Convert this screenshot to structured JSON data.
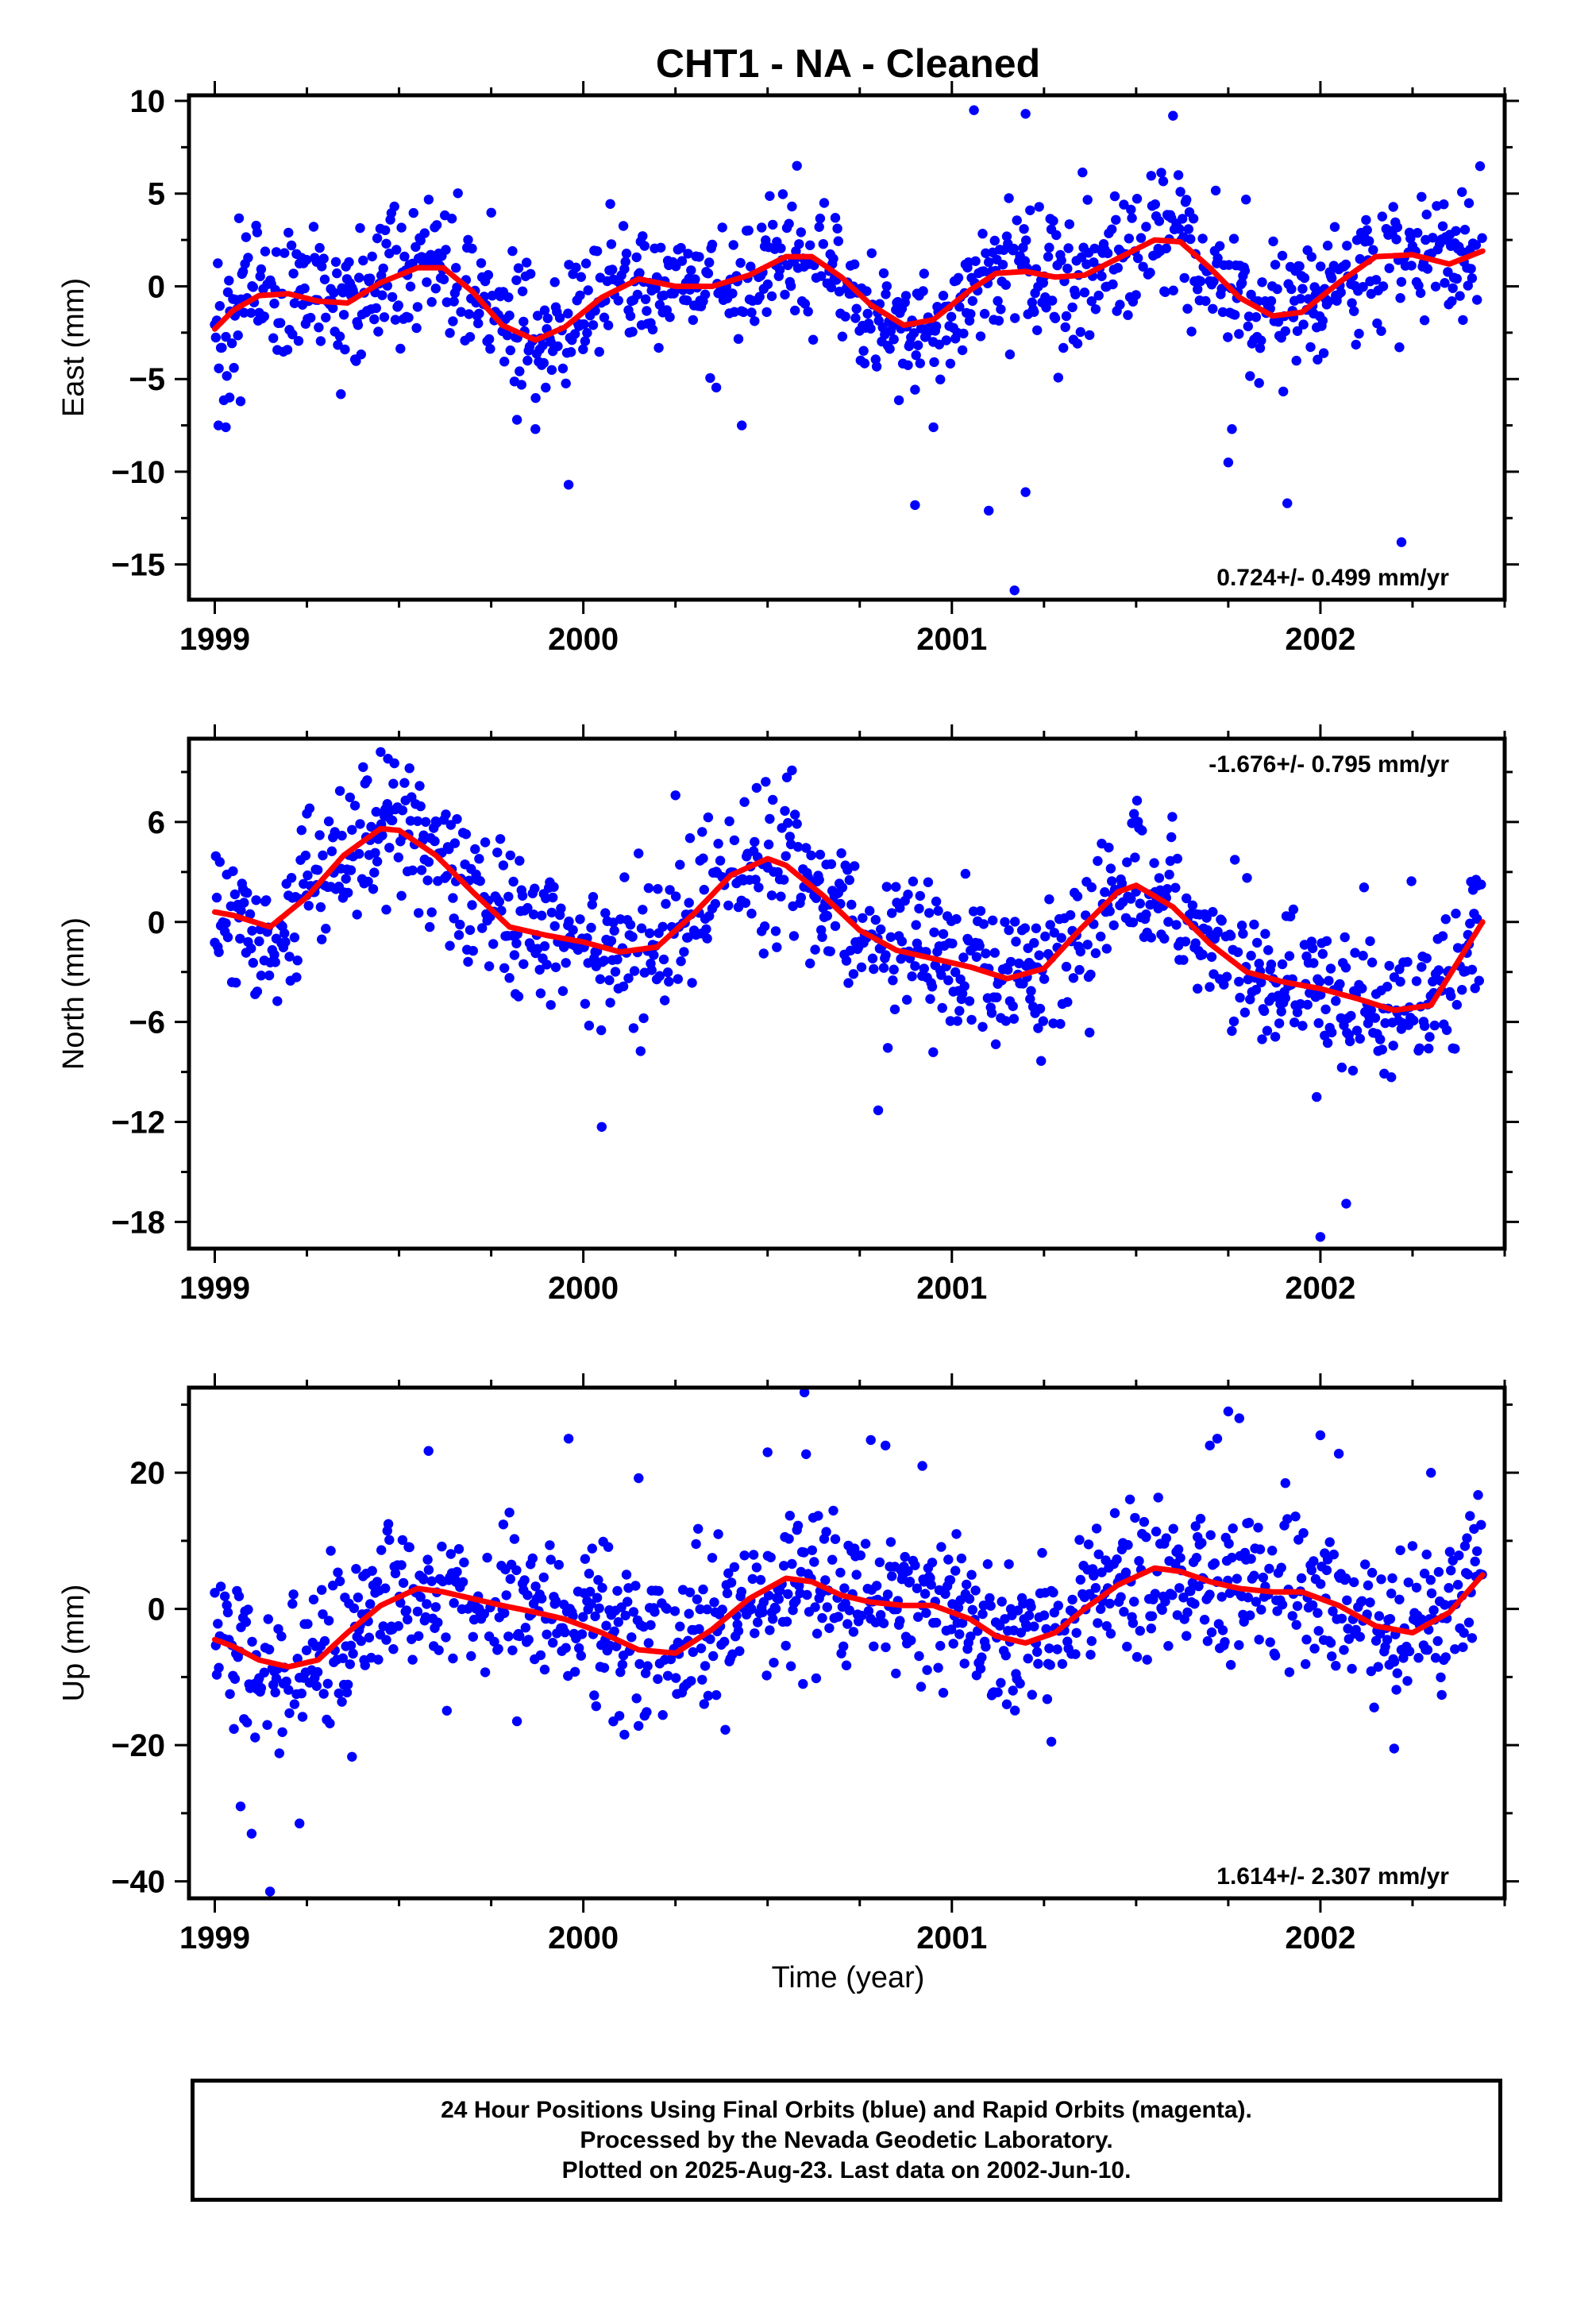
{
  "chart_data": {
    "title": "CHT1  - NA - Cleaned",
    "xlabel": "Time (year)",
    "xlim": [
      1998.93,
      2002.5
    ],
    "x_ticks": [
      "1999",
      "2000",
      "2001",
      "2002"
    ],
    "data_end": 2002.44,
    "colors": {
      "points": "#0000ff",
      "fit": "#ff0000",
      "frame": "#000000"
    },
    "panels": [
      {
        "name": "east",
        "type": "scatter",
        "ylabel": "East (mm)",
        "ylim": [
          -16.9,
          10.3
        ],
        "y_ticks": [
          10,
          5,
          0,
          -5,
          -10,
          -15
        ],
        "rate_label": "0.724+/- 0.499 mm/yr",
        "rate_position": "bottom-right",
        "fit_x": [
          1999.0,
          1999.05,
          1999.12,
          1999.2,
          1999.28,
          1999.36,
          1999.45,
          1999.55,
          1999.62,
          1999.7,
          1999.78,
          1999.87,
          1999.95,
          2000.05,
          2000.15,
          2000.25,
          2000.35,
          2000.45,
          2000.55,
          2000.62,
          2000.7,
          2000.78,
          2000.87,
          2000.95,
          2001.05,
          2001.12,
          2001.2,
          2001.28,
          2001.36,
          2001.45,
          2001.55,
          2001.62,
          2001.7,
          2001.78,
          2001.87,
          2001.95,
          2002.05,
          2002.15,
          2002.25,
          2002.35,
          2002.44
        ],
        "fit_y": [
          -2.3,
          -1.3,
          -0.5,
          -0.4,
          -0.8,
          -0.9,
          0.2,
          1.0,
          1.0,
          -0.3,
          -2.1,
          -2.9,
          -2.2,
          -0.6,
          0.4,
          0.0,
          0.0,
          0.6,
          1.6,
          1.6,
          0.5,
          -1.0,
          -2.1,
          -1.8,
          -0.2,
          0.7,
          0.8,
          0.5,
          0.6,
          1.5,
          2.5,
          2.4,
          1.0,
          -0.6,
          -1.6,
          -1.4,
          0.2,
          1.6,
          1.7,
          1.2,
          1.9
        ],
        "scatter_sigma": 1.8,
        "outliers": [
          [
            1999.01,
            -7.5
          ],
          [
            1999.03,
            -7.6
          ],
          [
            1999.04,
            -6.0
          ],
          [
            1999.07,
            -6.2
          ],
          [
            1999.82,
            -7.2
          ],
          [
            1999.87,
            -7.7
          ],
          [
            1999.96,
            -10.7
          ],
          [
            2000.43,
            -7.5
          ],
          [
            2000.95,
            -7.6
          ],
          [
            2000.9,
            -11.8
          ],
          [
            2001.06,
            9.5
          ],
          [
            2001.1,
            -12.1
          ],
          [
            2001.17,
            -16.4
          ],
          [
            2001.2,
            -11.1
          ],
          [
            2001.75,
            -9.5
          ],
          [
            2001.76,
            -7.7
          ],
          [
            2001.91,
            -11.7
          ],
          [
            2002.22,
            -13.8
          ],
          [
            2001.6,
            9.2
          ],
          [
            2001.2,
            9.3
          ]
        ]
      },
      {
        "name": "north",
        "type": "scatter",
        "ylabel": "North (mm)",
        "ylim": [
          -19.6,
          11.0
        ],
        "y_ticks": [
          6,
          0,
          -6,
          -12,
          -18
        ],
        "rate_label": "-1.676+/- 0.795 mm/yr",
        "rate_position": "top-right",
        "fit_x": [
          1999.0,
          1999.05,
          1999.15,
          1999.25,
          1999.35,
          1999.45,
          1999.5,
          1999.6,
          1999.7,
          1999.8,
          1999.9,
          2000.0,
          2000.1,
          2000.2,
          2000.3,
          2000.4,
          2000.5,
          2000.55,
          2000.65,
          2000.75,
          2000.85,
          2000.95,
          2001.05,
          2001.15,
          2001.25,
          2001.35,
          2001.45,
          2001.5,
          2001.6,
          2001.7,
          2001.8,
          2001.9,
          2002.0,
          2002.1,
          2002.2,
          2002.3,
          2002.44
        ],
        "fit_y": [
          0.6,
          0.4,
          -0.3,
          1.5,
          4.0,
          5.6,
          5.5,
          4.0,
          1.8,
          -0.3,
          -0.8,
          -1.2,
          -1.8,
          -1.5,
          0.5,
          2.8,
          3.8,
          3.4,
          1.6,
          -0.5,
          -1.7,
          -2.2,
          -2.7,
          -3.4,
          -2.8,
          -0.4,
          1.8,
          2.2,
          0.9,
          -1.3,
          -3.0,
          -3.6,
          -4.0,
          -4.6,
          -5.3,
          -5.0,
          0.0
        ],
        "scatter_sigma": 2.2,
        "outliers": [
          [
            1999.45,
            10.2
          ],
          [
            1999.47,
            9.8
          ],
          [
            2000.05,
            -12.3
          ],
          [
            2000.8,
            -11.3
          ],
          [
            2002.07,
            -16.9
          ],
          [
            2002.0,
            -18.9
          ],
          [
            1999.25,
            6.5
          ],
          [
            2000.25,
            7.6
          ]
        ]
      },
      {
        "name": "up",
        "type": "scatter",
        "ylabel": "Up (mm)",
        "ylim": [
          -42.5,
          32.5
        ],
        "y_ticks": [
          20,
          0,
          -20,
          -40
        ],
        "rate_label": "1.614+/- 2.307 mm/yr",
        "rate_position": "bottom-right",
        "fit_x": [
          1999.0,
          1999.05,
          1999.12,
          1999.2,
          1999.28,
          1999.36,
          1999.45,
          1999.55,
          1999.62,
          1999.7,
          1999.78,
          1999.87,
          1999.95,
          2000.05,
          2000.15,
          2000.25,
          2000.35,
          2000.45,
          2000.55,
          2000.62,
          2000.7,
          2000.78,
          2000.87,
          2000.95,
          2001.05,
          2001.12,
          2001.2,
          2001.28,
          2001.36,
          2001.45,
          2001.55,
          2001.62,
          2001.7,
          2001.78,
          2001.87,
          2001.95,
          2002.05,
          2002.15,
          2002.25,
          2002.35,
          2002.44
        ],
        "fit_y": [
          -4.5,
          -5.5,
          -7.5,
          -8.5,
          -7.5,
          -3.5,
          0.5,
          3.0,
          2.5,
          1.5,
          0.5,
          -0.5,
          -1.5,
          -3.5,
          -6.0,
          -6.5,
          -3.0,
          1.5,
          4.5,
          4.0,
          2.0,
          1.0,
          0.5,
          0.5,
          -1.5,
          -4.0,
          -5.0,
          -3.5,
          0.0,
          3.5,
          6.0,
          5.5,
          4.0,
          3.0,
          2.5,
          2.5,
          0.5,
          -2.5,
          -3.5,
          -0.5,
          5.0
        ],
        "scatter_sigma": 5.5,
        "outliers": [
          [
            1999.1,
            -33.0
          ],
          [
            1999.15,
            -41.5
          ],
          [
            1999.23,
            -31.5
          ],
          [
            1999.07,
            -29.0
          ],
          [
            1999.58,
            23.2
          ],
          [
            1999.96,
            25.0
          ],
          [
            2000.15,
            19.2
          ],
          [
            2000.5,
            23.0
          ],
          [
            2000.6,
            31.8
          ],
          [
            2000.78,
            24.8
          ],
          [
            2000.82,
            24.0
          ],
          [
            2000.92,
            21.0
          ],
          [
            2001.72,
            25.0
          ],
          [
            2001.75,
            29.0
          ],
          [
            2001.78,
            28.0
          ],
          [
            2002.0,
            25.5
          ],
          [
            2002.05,
            22.8
          ],
          [
            2002.2,
            -20.5
          ],
          [
            2001.27,
            -19.5
          ],
          [
            2001.7,
            24.0
          ],
          [
            2002.3,
            20.0
          ],
          [
            1999.82,
            -16.5
          ]
        ]
      }
    ]
  },
  "footer": {
    "line1": "24 Hour Positions Using Final Orbits (blue) and Rapid Orbits (magenta).",
    "line2": "Processed by the Nevada Geodetic Laboratory.",
    "line3": "Plotted on 2025-Aug-23. Last data on 2002-Jun-10."
  }
}
